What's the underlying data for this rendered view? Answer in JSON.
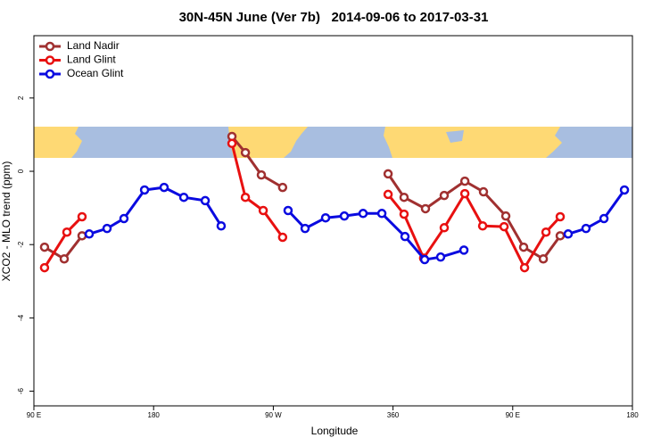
{
  "chart_data": {
    "type": "line",
    "title": "30N-45N June (Ver 7b)   2014-09-06 to 2017-03-31",
    "x_label": "Longitude",
    "y_label": "XCO2 - MLO trend (ppm)",
    "xlim": [
      90,
      540
    ],
    "ylim": [
      -6.4,
      3.7
    ],
    "xticks": [
      {
        "value": 90,
        "label": "90 E"
      },
      180,
      {
        "value": 270,
        "label": "90 W"
      },
      360,
      {
        "value": 450,
        "label": "90 E"
      },
      {
        "value": 540,
        "label": "180"
      }
    ],
    "yticks": [
      -6,
      -4,
      -2,
      0,
      2
    ],
    "grid": false,
    "legend": "top-left",
    "series": [
      {
        "name": "Land Nadir",
        "color": "#a03030",
        "x": [
          98,
          112.8,
          126.2,
          232,
          238.9,
          249,
          261,
          277,
          320,
          356.3,
          368.3,
          384.4,
          398.5,
          414,
          428,
          444.8,
          458.2,
          473,
          485.7
        ],
        "values": [
          -2.07,
          -2.39,
          -1.76,
          null,
          0.95,
          0.51,
          -0.1,
          -0.44,
          null,
          -0.07,
          -0.71,
          -1.02,
          -0.66,
          -0.27,
          -0.56,
          -1.22,
          -2.07,
          -2.39,
          -1.76
        ]
      },
      {
        "name": "Land Glint",
        "color": "#e81010",
        "x": [
          98,
          114.8,
          126.2,
          232,
          238.9,
          249,
          262.4,
          277,
          320,
          356.3,
          368.3,
          383,
          398.5,
          414,
          427.4,
          443.5,
          458.9,
          475,
          485.7
        ],
        "values": [
          -2.63,
          -1.66,
          -1.24,
          null,
          0.76,
          -0.71,
          -1.07,
          -1.8,
          null,
          -0.63,
          -1.17,
          -2.37,
          -1.54,
          -0.61,
          -1.49,
          -1.51,
          -2.63,
          -1.66,
          -1.24
        ]
      },
      {
        "name": "Ocean Glint",
        "color": "#0a0ae0",
        "x": [
          131.6,
          145,
          157.7,
          173.2,
          187.9,
          202.7,
          218.8,
          230.8,
          256,
          281.1,
          293.9,
          309.3,
          323.4,
          337.5,
          351.6,
          369,
          383.8,
          395.8,
          413.3,
          450,
          491.7,
          505.1,
          518.6,
          534
        ],
        "values": [
          -1.71,
          -1.56,
          -1.29,
          -0.51,
          -0.44,
          -0.71,
          -0.8,
          -1.49,
          null,
          -1.07,
          -1.56,
          -1.27,
          -1.22,
          -1.15,
          -1.15,
          -1.78,
          -2.41,
          -2.34,
          -2.15,
          null,
          -1.71,
          -1.56,
          -1.29,
          -0.51
        ]
      }
    ]
  }
}
